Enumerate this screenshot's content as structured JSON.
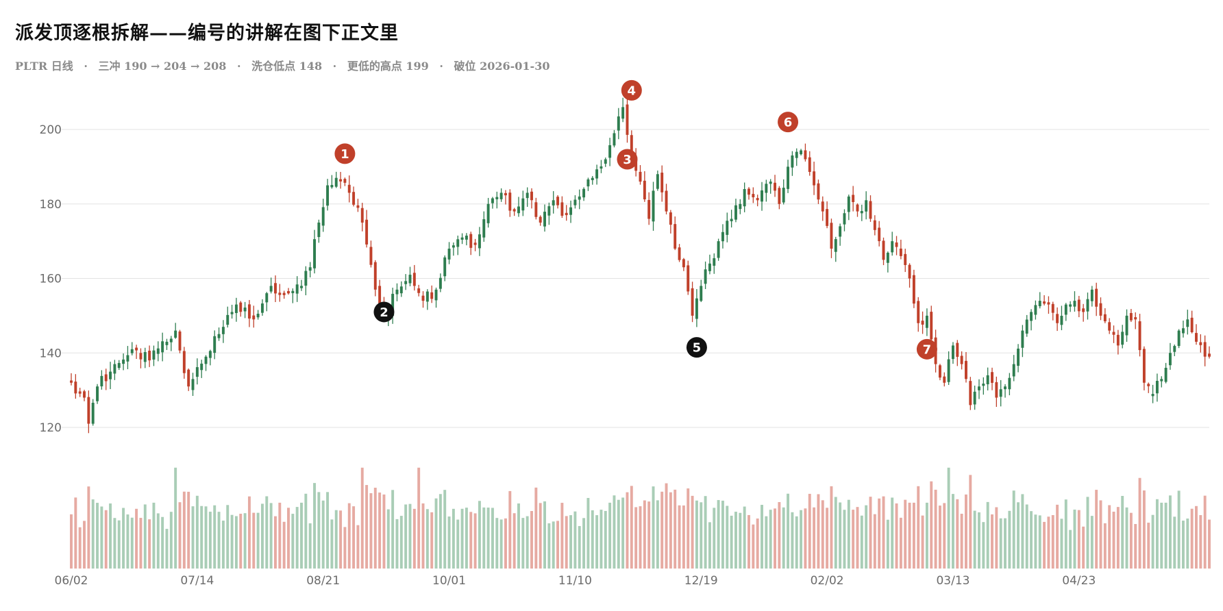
{
  "title": "派发顶逐根拆解——编号的讲解在图下正文里",
  "subtitle": {
    "ticker_view": "PLTR 日线",
    "surge": "三冲 190 → 204 → 208",
    "washout": "洗仓低点 148",
    "lower_high": "更低的高点 199",
    "breakdown": "破位 2026-01-30",
    "separator": "·"
  },
  "colors": {
    "up": "#2e7d4f",
    "down": "#c0402a",
    "volume_up": "#a9cdb6",
    "volume_down": "#e6aaa2",
    "grid": "#e3e3e3",
    "marker_red": "#c0402a",
    "marker_black": "#111111"
  },
  "chart_data": {
    "type": "candlestick",
    "ticker": "PLTR",
    "ylim": [
      116,
      212
    ],
    "yticks": [
      120,
      140,
      160,
      180,
      200
    ],
    "grid": "horizontal",
    "xtick_labels": [
      "06/02",
      "07/14",
      "08/21",
      "10/01",
      "11/10",
      "12/19",
      "02/02",
      "03/13",
      "04/23"
    ],
    "xtick_index": [
      0,
      29,
      58,
      87,
      116,
      145,
      174,
      203,
      232
    ],
    "anchors": [
      [
        0,
        132,
        "down"
      ],
      [
        3,
        128,
        "down"
      ],
      [
        4,
        121,
        "down"
      ],
      [
        6,
        131,
        "up"
      ],
      [
        10,
        137,
        "up"
      ],
      [
        14,
        141,
        "up"
      ],
      [
        18,
        138,
        "down"
      ],
      [
        22,
        143,
        "up"
      ],
      [
        24,
        146,
        "up"
      ],
      [
        27,
        131,
        "down"
      ],
      [
        31,
        139,
        "up"
      ],
      [
        35,
        147,
        "up"
      ],
      [
        38,
        153,
        "up"
      ],
      [
        42,
        149,
        "down"
      ],
      [
        46,
        158,
        "up"
      ],
      [
        50,
        156,
        "down"
      ],
      [
        53,
        158,
        "up"
      ],
      [
        55,
        163,
        "up"
      ],
      [
        57,
        175,
        "up"
      ],
      [
        59,
        185,
        "up"
      ],
      [
        61,
        187,
        "up"
      ],
      [
        64,
        183,
        "down"
      ],
      [
        67,
        175,
        "down"
      ],
      [
        70,
        157,
        "down"
      ],
      [
        72,
        150,
        "down"
      ],
      [
        75,
        157,
        "up"
      ],
      [
        78,
        161,
        "up"
      ],
      [
        81,
        154,
        "down"
      ],
      [
        84,
        157,
        "up"
      ],
      [
        87,
        168,
        "up"
      ],
      [
        90,
        171,
        "up"
      ],
      [
        93,
        169,
        "down"
      ],
      [
        96,
        180,
        "up"
      ],
      [
        99,
        183,
        "up"
      ],
      [
        102,
        178,
        "down"
      ],
      [
        105,
        183,
        "up"
      ],
      [
        108,
        175,
        "down"
      ],
      [
        111,
        181,
        "up"
      ],
      [
        114,
        177,
        "down"
      ],
      [
        117,
        182,
        "up"
      ],
      [
        120,
        187,
        "up"
      ],
      [
        123,
        192,
        "up"
      ],
      [
        125,
        199,
        "up"
      ],
      [
        127,
        206,
        "up"
      ],
      [
        129,
        192,
        "down"
      ],
      [
        131,
        186,
        "down"
      ],
      [
        133,
        176,
        "down"
      ],
      [
        135,
        188,
        "up"
      ],
      [
        137,
        178,
        "down"
      ],
      [
        139,
        168,
        "down"
      ],
      [
        141,
        163,
        "down"
      ],
      [
        143,
        150,
        "down"
      ],
      [
        145,
        158,
        "up"
      ],
      [
        147,
        164,
        "up"
      ],
      [
        149,
        170,
        "up"
      ],
      [
        152,
        176,
        "up"
      ],
      [
        155,
        184,
        "up"
      ],
      [
        158,
        181,
        "down"
      ],
      [
        161,
        186,
        "up"
      ],
      [
        163,
        180,
        "down"
      ],
      [
        165,
        190,
        "up"
      ],
      [
        167,
        194,
        "up"
      ],
      [
        169,
        192,
        "down"
      ],
      [
        171,
        185,
        "down"
      ],
      [
        173,
        178,
        "down"
      ],
      [
        175,
        168,
        "down"
      ],
      [
        177,
        174,
        "up"
      ],
      [
        179,
        182,
        "up"
      ],
      [
        181,
        178,
        "down"
      ],
      [
        183,
        181,
        "up"
      ],
      [
        185,
        173,
        "down"
      ],
      [
        187,
        165,
        "down"
      ],
      [
        189,
        170,
        "up"
      ],
      [
        191,
        166,
        "down"
      ],
      [
        193,
        160,
        "down"
      ],
      [
        195,
        148,
        "down"
      ],
      [
        197,
        150,
        "up"
      ],
      [
        199,
        137,
        "down"
      ],
      [
        201,
        132,
        "down"
      ],
      [
        203,
        142,
        "up"
      ],
      [
        205,
        137,
        "down"
      ],
      [
        207,
        126,
        "down"
      ],
      [
        209,
        131,
        "up"
      ],
      [
        211,
        134,
        "up"
      ],
      [
        213,
        128,
        "down"
      ],
      [
        215,
        131,
        "up"
      ],
      [
        217,
        137,
        "up"
      ],
      [
        219,
        146,
        "up"
      ],
      [
        221,
        151,
        "up"
      ],
      [
        223,
        154,
        "up"
      ],
      [
        225,
        153,
        "down"
      ],
      [
        227,
        148,
        "down"
      ],
      [
        229,
        153,
        "up"
      ],
      [
        231,
        154,
        "up"
      ],
      [
        233,
        151,
        "down"
      ],
      [
        235,
        157,
        "up"
      ],
      [
        237,
        150,
        "down"
      ],
      [
        239,
        146,
        "down"
      ],
      [
        241,
        142,
        "down"
      ],
      [
        243,
        150,
        "up"
      ],
      [
        245,
        149,
        "down"
      ],
      [
        247,
        132,
        "down"
      ],
      [
        249,
        129,
        "up"
      ],
      [
        251,
        133,
        "up"
      ],
      [
        253,
        140,
        "up"
      ],
      [
        255,
        146,
        "up"
      ],
      [
        257,
        149,
        "up"
      ],
      [
        259,
        143,
        "down"
      ],
      [
        261,
        139,
        "down"
      ],
      [
        262,
        139,
        "down"
      ]
    ],
    "markers": [
      {
        "label": "1",
        "index": 63,
        "price": 193.5,
        "color": "red"
      },
      {
        "label": "2",
        "index": 72,
        "price": 151,
        "color": "black"
      },
      {
        "label": "3",
        "index": 128,
        "price": 192,
        "color": "red"
      },
      {
        "label": "4",
        "index": 129,
        "price": 210.5,
        "color": "red"
      },
      {
        "label": "5",
        "index": 144,
        "price": 141.5,
        "color": "black"
      },
      {
        "label": "6",
        "index": 165,
        "price": 202,
        "color": "red"
      },
      {
        "label": "7",
        "index": 197,
        "price": 141,
        "color": "red"
      }
    ]
  }
}
